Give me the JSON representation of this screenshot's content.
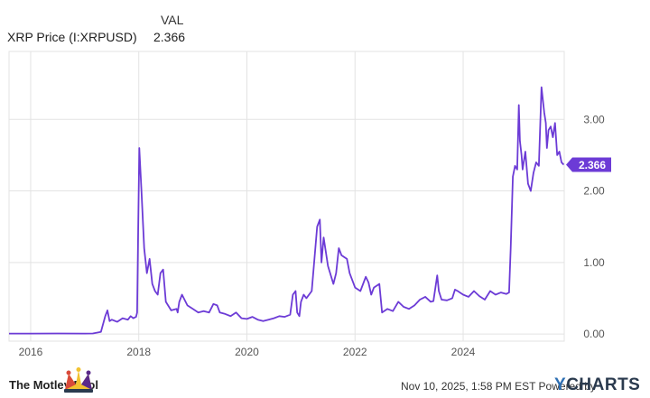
{
  "legend": {
    "header": "VAL",
    "series_name": "XRP Price (I:XRPUSD)",
    "series_value": "2.366"
  },
  "footer": {
    "brand": "The Motley Fool",
    "timestamp": "Nov 10, 2025, 1:58 PM EST",
    "powered_by": "Powered by",
    "provider": "YCHARTS"
  },
  "colors": {
    "line": "#6c3bd6",
    "grid": "#e3e3e3",
    "tick": "#555555"
  },
  "chart_data": {
    "type": "line",
    "title": "",
    "xlabel": "",
    "ylabel": "",
    "xlim": [
      2015.6,
      2025.87
    ],
    "ylim": [
      -0.1,
      3.95
    ],
    "x_ticks": [
      2016,
      2018,
      2020,
      2022,
      2024
    ],
    "x_tick_labels": [
      "2016",
      "2018",
      "2020",
      "2022",
      "2024"
    ],
    "y_ticks": [
      0,
      1,
      2,
      3
    ],
    "y_tick_labels": [
      "0.00",
      "1.00",
      "2.00",
      "3.00"
    ],
    "grid": true,
    "legend": "top-left",
    "last_value_label": "2.366",
    "series": [
      {
        "name": "XRP Price (I:XRPUSD)",
        "color": "#6c3bd6",
        "x": [
          2015.6,
          2016.0,
          2016.5,
          2017.0,
          2017.15,
          2017.3,
          2017.38,
          2017.42,
          2017.46,
          2017.5,
          2017.6,
          2017.7,
          2017.8,
          2017.85,
          2017.9,
          2017.95,
          2017.97,
          2017.99,
          2018.01,
          2018.05,
          2018.1,
          2018.15,
          2018.2,
          2018.25,
          2018.3,
          2018.35,
          2018.4,
          2018.45,
          2018.5,
          2018.6,
          2018.7,
          2018.72,
          2018.75,
          2018.8,
          2018.9,
          2019.0,
          2019.1,
          2019.2,
          2019.3,
          2019.38,
          2019.45,
          2019.5,
          2019.6,
          2019.7,
          2019.8,
          2019.9,
          2020.0,
          2020.1,
          2020.2,
          2020.3,
          2020.4,
          2020.5,
          2020.6,
          2020.7,
          2020.8,
          2020.85,
          2020.9,
          2020.93,
          2020.97,
          2021.0,
          2021.05,
          2021.1,
          2021.2,
          2021.25,
          2021.3,
          2021.35,
          2021.38,
          2021.42,
          2021.5,
          2021.6,
          2021.65,
          2021.7,
          2021.75,
          2021.85,
          2021.9,
          2022.0,
          2022.1,
          2022.2,
          2022.25,
          2022.3,
          2022.35,
          2022.45,
          2022.5,
          2022.6,
          2022.7,
          2022.8,
          2022.9,
          2023.0,
          2023.1,
          2023.2,
          2023.3,
          2023.4,
          2023.45,
          2023.52,
          2023.55,
          2023.6,
          2023.7,
          2023.8,
          2023.85,
          2023.9,
          2024.0,
          2024.1,
          2024.2,
          2024.3,
          2024.4,
          2024.5,
          2024.6,
          2024.7,
          2024.8,
          2024.85,
          2024.88,
          2024.92,
          2024.96,
          2025.0,
          2025.03,
          2025.05,
          2025.08,
          2025.1,
          2025.15,
          2025.2,
          2025.25,
          2025.3,
          2025.35,
          2025.4,
          2025.45,
          2025.5,
          2025.53,
          2025.55,
          2025.58,
          2025.62,
          2025.66,
          2025.7,
          2025.74,
          2025.78,
          2025.82,
          2025.86
        ],
        "values": [
          0.006,
          0.006,
          0.007,
          0.006,
          0.007,
          0.03,
          0.25,
          0.33,
          0.18,
          0.2,
          0.17,
          0.22,
          0.2,
          0.25,
          0.22,
          0.24,
          0.3,
          1.5,
          2.6,
          2.0,
          1.2,
          0.85,
          1.05,
          0.7,
          0.6,
          0.55,
          0.85,
          0.9,
          0.45,
          0.33,
          0.35,
          0.3,
          0.45,
          0.55,
          0.4,
          0.35,
          0.3,
          0.32,
          0.3,
          0.42,
          0.4,
          0.3,
          0.28,
          0.25,
          0.3,
          0.22,
          0.21,
          0.24,
          0.2,
          0.18,
          0.2,
          0.22,
          0.25,
          0.24,
          0.27,
          0.55,
          0.6,
          0.3,
          0.25,
          0.45,
          0.55,
          0.5,
          0.6,
          1.05,
          1.5,
          1.6,
          1.0,
          1.35,
          0.95,
          0.7,
          0.85,
          1.2,
          1.1,
          1.05,
          0.85,
          0.65,
          0.6,
          0.8,
          0.72,
          0.55,
          0.65,
          0.7,
          0.3,
          0.35,
          0.32,
          0.45,
          0.38,
          0.35,
          0.4,
          0.48,
          0.52,
          0.45,
          0.46,
          0.82,
          0.6,
          0.48,
          0.47,
          0.5,
          0.62,
          0.6,
          0.55,
          0.52,
          0.6,
          0.53,
          0.48,
          0.6,
          0.55,
          0.58,
          0.56,
          0.58,
          1.2,
          2.2,
          2.35,
          2.3,
          3.2,
          2.7,
          2.5,
          2.3,
          2.55,
          2.1,
          2.0,
          2.25,
          2.4,
          2.35,
          3.45,
          3.1,
          2.95,
          2.6,
          2.85,
          2.9,
          2.75,
          2.95,
          2.5,
          2.55,
          2.4,
          2.366
        ]
      }
    ]
  }
}
